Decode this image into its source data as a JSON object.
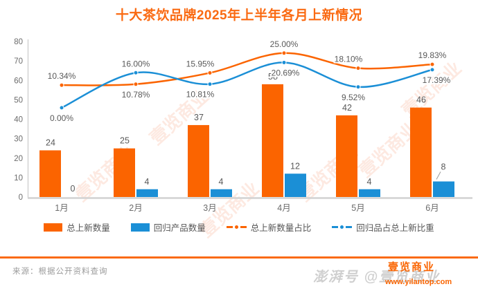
{
  "title": "十大茶饮品牌2025年上半年各月上新情况",
  "source": {
    "label": "来源：根据公开资料查询"
  },
  "watermark": {
    "stamp": "壹览商业",
    "footer_gray": "澎湃号 @壹览商业",
    "footer_logo": "壹览商业",
    "footer_url": "www.yilantop.com"
  },
  "colors": {
    "orange": "#fb6400",
    "blue": "#1b8fd6",
    "title_orange": "#fa6a12",
    "axis_text": "#6b6b6b",
    "label_text": "#595959",
    "axis_line": "#d2d2d2",
    "source_text": "#9b9b9b"
  },
  "chart_data": {
    "type": "bar",
    "subtype": "bar-line-combo",
    "title": "十大茶饮品牌2025年上半年各月上新情况",
    "categories": [
      "1月",
      "2月",
      "3月",
      "4月",
      "5月",
      "6月"
    ],
    "series": [
      {
        "name": "总上新数量",
        "type": "bar",
        "color": "#fb6400",
        "values": [
          24,
          25,
          37,
          58,
          42,
          46
        ]
      },
      {
        "name": "回归产品数量",
        "type": "bar",
        "color": "#1b8fd6",
        "values": [
          0,
          4,
          4,
          12,
          4,
          8
        ]
      },
      {
        "name": "总上新数量占比",
        "type": "line",
        "color": "#fb6400",
        "values": [
          10.34,
          10.78,
          15.95,
          25.0,
          18.1,
          19.83
        ],
        "labels": [
          "10.34%",
          "10.78%",
          "15.95%",
          "25.00%",
          "18.10%",
          "19.83%"
        ]
      },
      {
        "name": "回归品占总上新比重",
        "type": "line",
        "color": "#1b8fd6",
        "values": [
          0.0,
          16.0,
          10.81,
          20.69,
          9.52,
          17.39
        ],
        "labels": [
          "0.00%",
          "16.00%",
          "10.81%",
          "20.69%",
          "9.52%",
          "17.39%"
        ]
      }
    ],
    "xlabel": "",
    "ylabel": "",
    "y_axis": {
      "min": 0,
      "max": 80,
      "step": 10,
      "ticks": [
        "0",
        "10",
        "20",
        "30",
        "40",
        "50",
        "60",
        "70",
        "80"
      ]
    },
    "secondary_pct_axis": {
      "visible": false,
      "note": "hidden % axis: leftValue = 45.9 + 1.125 * pct"
    },
    "grid": "off",
    "legend_position": "bottom",
    "label_layout": {
      "line1_side": [
        "above",
        "below",
        "above",
        "above",
        "above",
        "above"
      ],
      "line1_dx": [
        0,
        0,
        -14,
        0,
        -14,
        0
      ],
      "line2_side": [
        "below",
        "above",
        "below",
        "below",
        "below",
        "below"
      ],
      "line2_dx": [
        0,
        0,
        -14,
        2,
        -7,
        6
      ],
      "bar2_leader": [
        false,
        false,
        false,
        false,
        false,
        true
      ]
    }
  }
}
